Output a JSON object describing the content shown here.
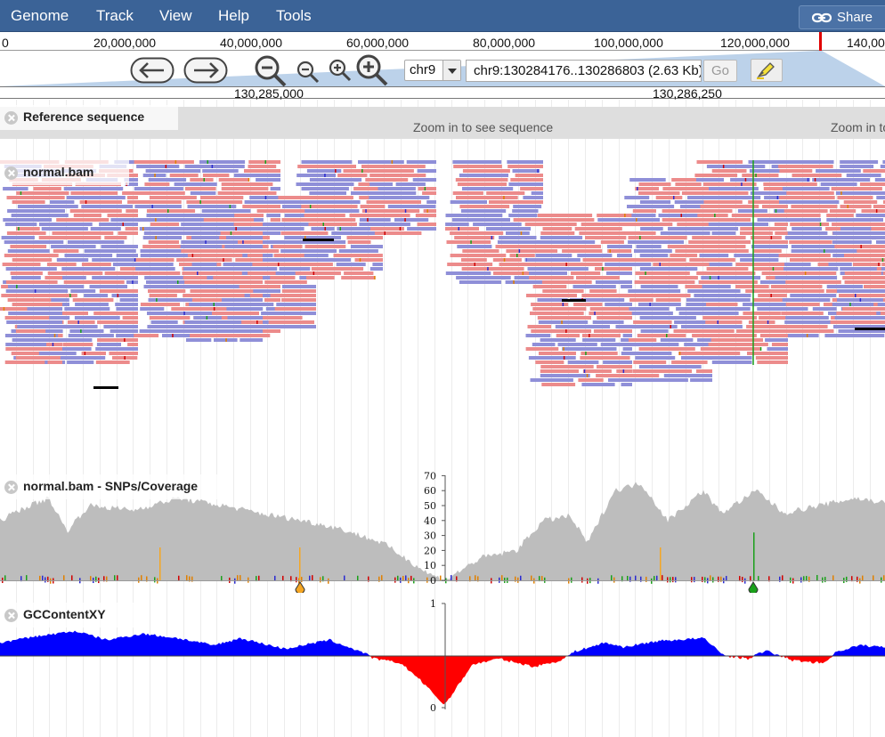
{
  "menu": {
    "items": [
      "Genome",
      "Track",
      "View",
      "Help",
      "Tools"
    ],
    "share_label": "Share"
  },
  "overview": {
    "labels": [
      "0",
      "20,000,000",
      "40,000,000",
      "60,000,000",
      "80,000,000",
      "100,000,000",
      "120,000,000",
      "140,00"
    ]
  },
  "nav": {
    "chrom": "chr9",
    "location": "chr9:130284176..130286803 (2.63 Kb)",
    "go_label": "Go"
  },
  "ruler": {
    "labels": [
      "130,285,000",
      "130,286,250"
    ]
  },
  "tracks": {
    "refseq": {
      "label": "Reference sequence",
      "message": "Zoom in to see sequence"
    },
    "bam": {
      "label": "normal.bam"
    },
    "coverage": {
      "label": "normal.bam - SNPs/Coverage",
      "ticks": [
        "70",
        "60",
        "50",
        "40",
        "30",
        "20",
        "10",
        "0"
      ]
    },
    "gc": {
      "label": "GCContentXY",
      "ticks": [
        "1",
        "0"
      ]
    }
  },
  "colors": {
    "menubar": "#3b6397",
    "read_forward": "#ec8b8b",
    "read_reverse": "#8f8fd8",
    "coverage": "#bdbdbd",
    "gc_high": "#0000ff",
    "gc_low": "#ff0000",
    "snp_orange": "#f5a623",
    "snp_green": "#1aa01a"
  }
}
